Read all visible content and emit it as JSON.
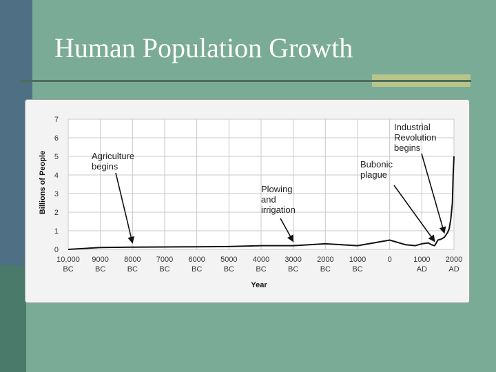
{
  "slide": {
    "title": "Human Population Growth"
  },
  "chart_data": {
    "type": "line",
    "xlabel": "Year",
    "ylabel": "Billions of People",
    "xlim": [
      -10000,
      2000
    ],
    "ylim": [
      0,
      7
    ],
    "y_ticks": [
      "0",
      "1",
      "2",
      "3",
      "4",
      "5",
      "6",
      "7"
    ],
    "x_ticks": [
      {
        "value": -10000,
        "line1": "10,000",
        "line2": "BC"
      },
      {
        "value": -9000,
        "line1": "9000",
        "line2": "BC"
      },
      {
        "value": -8000,
        "line1": "8000",
        "line2": "BC"
      },
      {
        "value": -7000,
        "line1": "7000",
        "line2": "BC"
      },
      {
        "value": -6000,
        "line1": "6000",
        "line2": "BC"
      },
      {
        "value": -5000,
        "line1": "5000",
        "line2": "BC"
      },
      {
        "value": -4000,
        "line1": "4000",
        "line2": "BC"
      },
      {
        "value": -3000,
        "line1": "3000",
        "line2": "BC"
      },
      {
        "value": -2000,
        "line1": "2000",
        "line2": "BC"
      },
      {
        "value": -1000,
        "line1": "1000",
        "line2": "BC"
      },
      {
        "value": 0,
        "line1": "0",
        "line2": ""
      },
      {
        "value": 1000,
        "line1": "1000",
        "line2": "AD"
      },
      {
        "value": 2000,
        "line1": "2000",
        "line2": "AD"
      }
    ],
    "grid": true,
    "series": [
      {
        "x": [
          -10000,
          -9000,
          -8000,
          -7000,
          -6000,
          -5000,
          -4000,
          -3000,
          -2500,
          -2000,
          -1500,
          -1000,
          -500,
          0,
          500,
          800,
          1000,
          1200,
          1300,
          1400,
          1500,
          1600,
          1700,
          1800,
          1850,
          1900,
          1950,
          1975,
          2000
        ],
        "y": [
          0.0,
          0.1,
          0.12,
          0.13,
          0.14,
          0.15,
          0.2,
          0.2,
          0.25,
          0.3,
          0.25,
          0.2,
          0.35,
          0.5,
          0.25,
          0.2,
          0.3,
          0.35,
          0.25,
          0.2,
          0.5,
          0.55,
          0.65,
          0.9,
          1.1,
          1.6,
          2.5,
          4.0,
          5.0
        ]
      }
    ],
    "annotations": [
      {
        "lines": [
          "Agriculture",
          "begins"
        ],
        "arrow_to_x": -8000
      },
      {
        "lines": [
          "Plowing",
          "and",
          "irrigation"
        ],
        "arrow_to_x": -3000
      },
      {
        "lines": [
          "Bubonic",
          "plague"
        ],
        "arrow_to_x": 1400
      },
      {
        "lines": [
          "Industrial",
          "Revolution",
          "begins"
        ],
        "arrow_to_x": 1700
      }
    ]
  }
}
